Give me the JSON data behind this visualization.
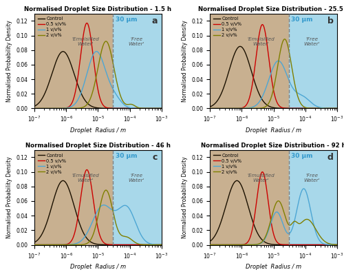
{
  "titles": [
    "Normalised Droplet Size Distribution - 1.5 h",
    "Normalised Droplet Size Distribution - 25.5 h",
    "Normalised Droplet Size Distribution - 46 h",
    "Normalised Droplet Size Distribution - 92 h"
  ],
  "panel_labels": [
    "a",
    "b",
    "c",
    "d"
  ],
  "xlabel": "Droplet  Radius / m",
  "ylabel": "Normalised Probability Density",
  "ylim": [
    0,
    0.13
  ],
  "yticks": [
    0,
    0.02,
    0.04,
    0.06,
    0.08,
    0.1,
    0.12
  ],
  "vline_x": 3e-05,
  "vline_label": "30 μm",
  "bg_emulsified": "#c8b090",
  "bg_free": "#a8d8ea",
  "line_colors": [
    "#1a1000",
    "#cc0000",
    "#4da6d4",
    "#7f7f00"
  ],
  "legend_labels": [
    "Control",
    "0.5 v/v%",
    "1 v/v%",
    "2 v/v%"
  ],
  "emulsified_text": "'Emulsified\nWater'",
  "free_water_text": "'Free\nWater'",
  "panels": {
    "a": {
      "curves": {
        "control": {
          "mu": -6.1,
          "sigma": 0.35,
          "amp": 0.078
        },
        "0p5": {
          "mu": -5.35,
          "sigma": 0.2,
          "amp": 0.117
        },
        "1": {
          "mu": -5.05,
          "sigma": 0.3,
          "amp": 0.078,
          "extra_peak": {
            "mu": -4.45,
            "sigma": 0.2,
            "amp": 0.01
          }
        },
        "2": {
          "mu": -4.75,
          "sigma": 0.25,
          "amp": 0.092,
          "extra_peak": {
            "mu": -3.95,
            "sigma": 0.12,
            "amp": 0.005
          }
        }
      }
    },
    "b": {
      "curves": {
        "control": {
          "mu": -6.05,
          "sigma": 0.35,
          "amp": 0.085
        },
        "0p5": {
          "mu": -5.35,
          "sigma": 0.2,
          "amp": 0.115
        },
        "1": {
          "mu": -4.85,
          "sigma": 0.3,
          "amp": 0.065,
          "extra_peak": {
            "mu": -4.1,
            "sigma": 0.25,
            "amp": 0.015
          }
        },
        "2": {
          "mu": -4.65,
          "sigma": 0.22,
          "amp": 0.095
        }
      }
    },
    "c": {
      "curves": {
        "control": {
          "mu": -6.1,
          "sigma": 0.35,
          "amp": 0.088
        },
        "0p5": {
          "mu": -5.35,
          "sigma": 0.2,
          "amp": 0.103
        },
        "1": {
          "mu": -4.85,
          "sigma": 0.32,
          "amp": 0.053,
          "extra_peak": {
            "mu": -4.1,
            "sigma": 0.28,
            "amp": 0.05
          }
        },
        "2": {
          "mu": -4.75,
          "sigma": 0.22,
          "amp": 0.075,
          "extra_peak": {
            "mu": -4.1,
            "sigma": 0.18,
            "amp": 0.01
          }
        }
      }
    },
    "d": {
      "curves": {
        "control": {
          "mu": -6.15,
          "sigma": 0.35,
          "amp": 0.088
        },
        "0p5": {
          "mu": -5.35,
          "sigma": 0.18,
          "amp": 0.1
        },
        "1": {
          "mu": -4.9,
          "sigma": 0.2,
          "amp": 0.045,
          "extra_peak": {
            "mu": -4.05,
            "sigma": 0.22,
            "amp": 0.077
          }
        },
        "2": {
          "mu": -4.85,
          "sigma": 0.22,
          "amp": 0.06,
          "extra_peak": {
            "mu": -3.95,
            "sigma": 0.28,
            "amp": 0.035
          },
          "extra_peak2": {
            "mu": -4.35,
            "sigma": 0.1,
            "amp": 0.015
          }
        }
      }
    }
  }
}
